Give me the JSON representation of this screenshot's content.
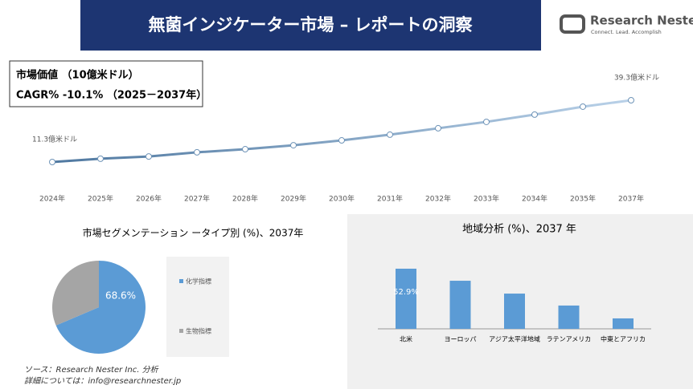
{
  "header": {
    "title": "無菌インジケーター市場 – レポートの洞察",
    "logo": "Research Nester",
    "tagline": "Connect. Lead. Accomplish"
  },
  "info": {
    "line1": "市場価値 （10億米ドル）",
    "line2": "CAGR% -10.1% （2025－2037年）"
  },
  "chart_data": [
    {
      "type": "line",
      "categories": [
        "2024年",
        "2025年",
        "2026年",
        "2027年",
        "2028年",
        "2029年",
        "2030年",
        "2031年",
        "2032年",
        "2033年",
        "2034年",
        "2035年",
        "2037年"
      ],
      "values": [
        11.3,
        12.8,
        13.8,
        15.7,
        17.1,
        18.9,
        21.1,
        23.7,
        26.6,
        29.5,
        32.8,
        36.4,
        39.3
      ],
      "value_labels": [
        "11.3億米ドル",
        null,
        null,
        null,
        null,
        null,
        null,
        null,
        null,
        null,
        null,
        null,
        "39.3億米ドル"
      ],
      "color": "#6f94b8"
    },
    {
      "type": "pie",
      "title": "市場セグメンテーション ータイプ別 (%)、2037年",
      "categories": [
        "化学指標",
        "生物指標"
      ],
      "values": [
        68.6,
        31.4
      ],
      "value_labels": [
        "68.6%",
        null
      ],
      "colors": [
        "#5b9bd5",
        "#a5a5a5"
      ]
    },
    {
      "type": "bar",
      "title": "地域分析 (%)、2037 年",
      "categories": [
        "北米",
        "ヨーロッパ",
        "アジア太平洋地域",
        "ラテンアメリカ",
        "中東とアフリカ"
      ],
      "values": [
        52.9,
        42.3,
        31.0,
        20.5,
        9.2
      ],
      "value_labels": [
        "52.9%",
        null,
        null,
        null,
        null
      ],
      "color": "#5b9bd5"
    }
  ],
  "footer": {
    "line1": "ソース：Research Nester Inc. 分析",
    "line2": "詳細については：info@researchnester.jp"
  }
}
